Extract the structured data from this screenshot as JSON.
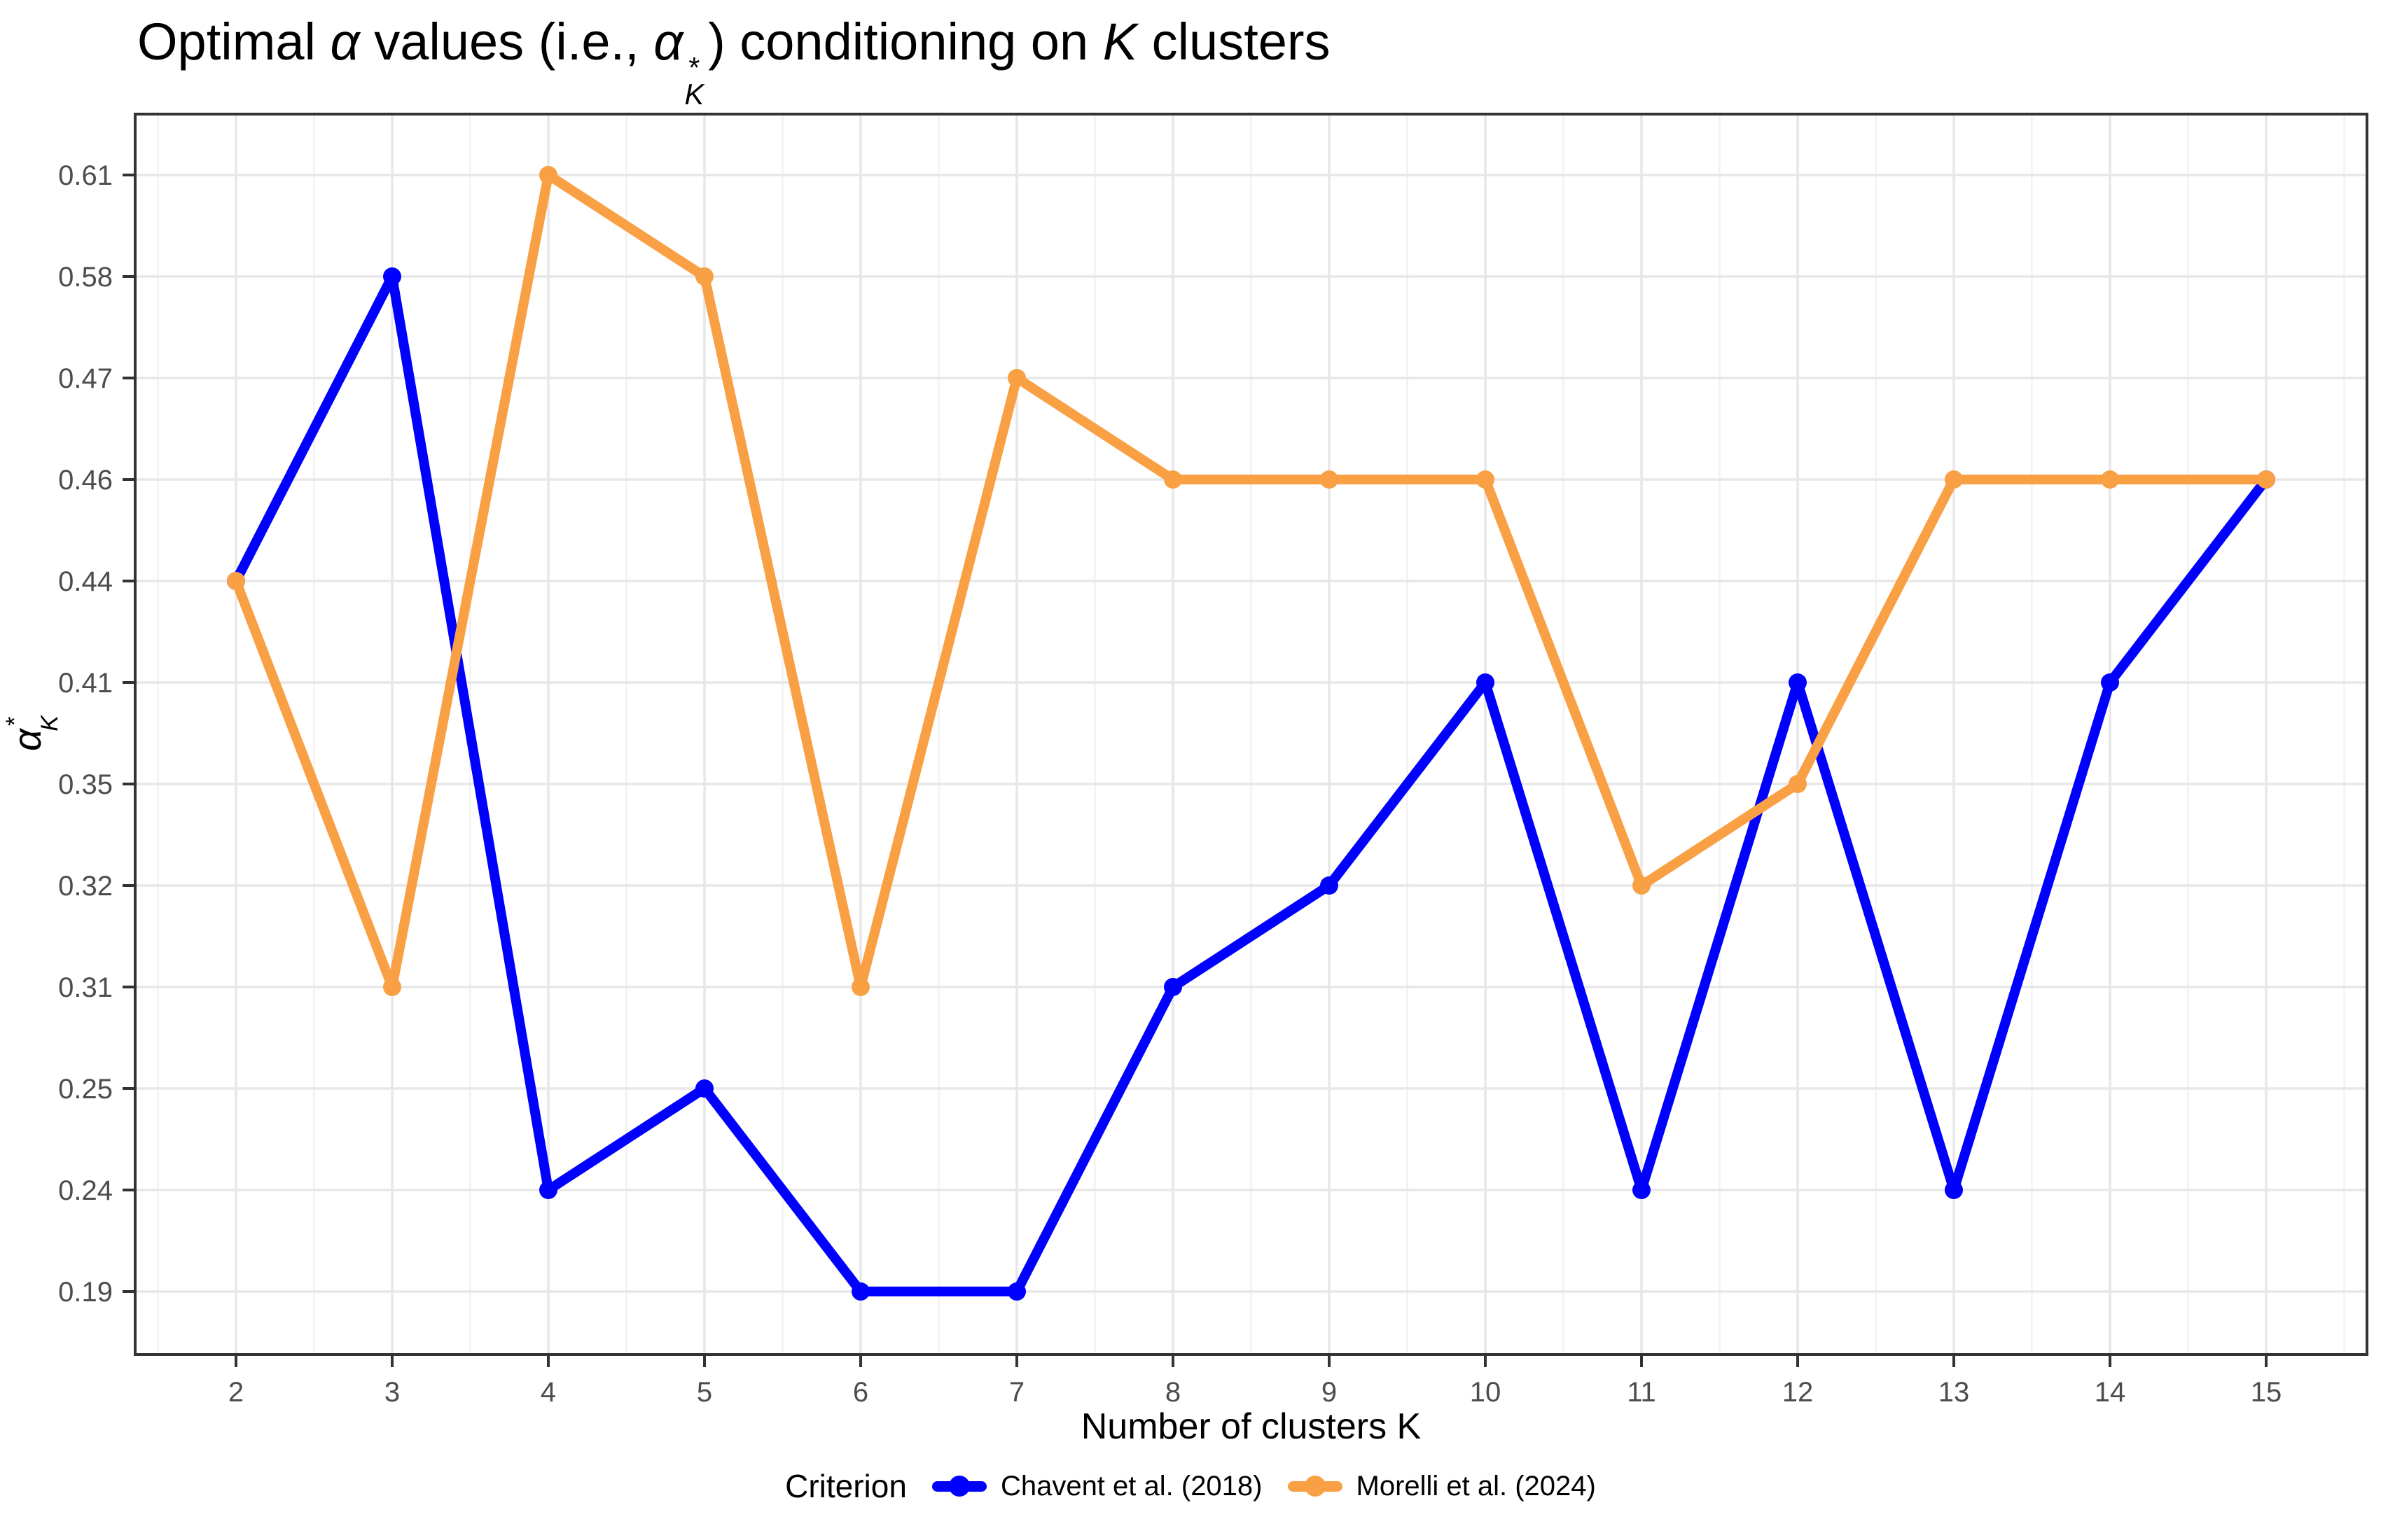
{
  "title_parts": [
    {
      "t": "Optimal "
    },
    {
      "t": "α",
      "math": true
    },
    {
      "t": " values (i.e., "
    },
    {
      "t": "α",
      "math": true,
      "scripts": {
        "sup": "*",
        "sub": "K"
      }
    },
    {
      "t": ") conditioning on "
    },
    {
      "t": "K",
      "math": true
    },
    {
      "t": " clusters"
    }
  ],
  "chart_data": {
    "type": "line",
    "geom": "line+point",
    "x": [
      2,
      3,
      4,
      5,
      6,
      7,
      8,
      9,
      10,
      11,
      12,
      13,
      14,
      15
    ],
    "xlabel": "Number of clusters K",
    "ylabel_parts": {
      "base": "α",
      "sub": "K",
      "sup": "*"
    },
    "y_levels": [
      "0.19",
      "0.24",
      "0.25",
      "0.31",
      "0.32",
      "0.35",
      "0.41",
      "0.44",
      "0.46",
      "0.47",
      "0.58",
      "0.61"
    ],
    "y_axis_type": "ordinal",
    "series": [
      {
        "name": "Chavent et al. (2018)",
        "color": "#0000FF",
        "values": [
          0.44,
          0.58,
          0.24,
          0.25,
          0.19,
          0.19,
          0.31,
          0.32,
          0.41,
          0.24,
          0.41,
          0.24,
          0.41,
          0.46
        ]
      },
      {
        "name": "Morelli et al. (2024)",
        "color": "#F9A045",
        "values": [
          0.44,
          0.31,
          0.61,
          0.58,
          0.31,
          0.47,
          0.46,
          0.46,
          0.46,
          0.32,
          0.35,
          0.46,
          0.46,
          0.46
        ]
      }
    ],
    "legend": {
      "title": "Criterion",
      "position": "bottom"
    },
    "grid": {
      "major_color": "#E7E7E7",
      "minor_color": "#F2F2F2",
      "show_minor_x": true,
      "show_minor_y": false
    },
    "panel_border_color": "#333333",
    "tick_color": "#333333",
    "tick_label_color": "#4D4D4D",
    "background_color": "#FFFFFF"
  }
}
